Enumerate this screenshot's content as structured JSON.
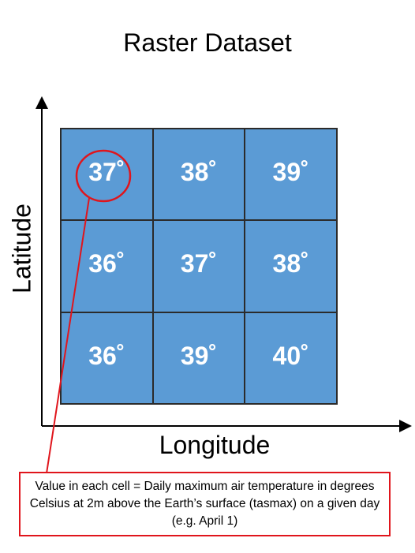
{
  "title": "Raster Dataset",
  "axes": {
    "y_label": "Latitude",
    "x_label": "Longitude"
  },
  "grid": {
    "rows": [
      [
        "37˚",
        "38˚",
        "39˚"
      ],
      [
        "36˚",
        "37˚",
        "38˚"
      ],
      [
        "36˚",
        "39˚",
        "40˚"
      ]
    ],
    "highlighted_cell": {
      "row": 0,
      "col": 0
    }
  },
  "note": {
    "text": "Value in each cell = Daily maximum air temperature in degrees Celsius at 2m above the Earth’s surface (tasmax) on a given day (e.g. April 1)"
  },
  "colors": {
    "cell_fill": "#5b9bd5",
    "grid_line": "#2b2b2b",
    "highlight": "#e0151c",
    "axis": "#000000"
  }
}
